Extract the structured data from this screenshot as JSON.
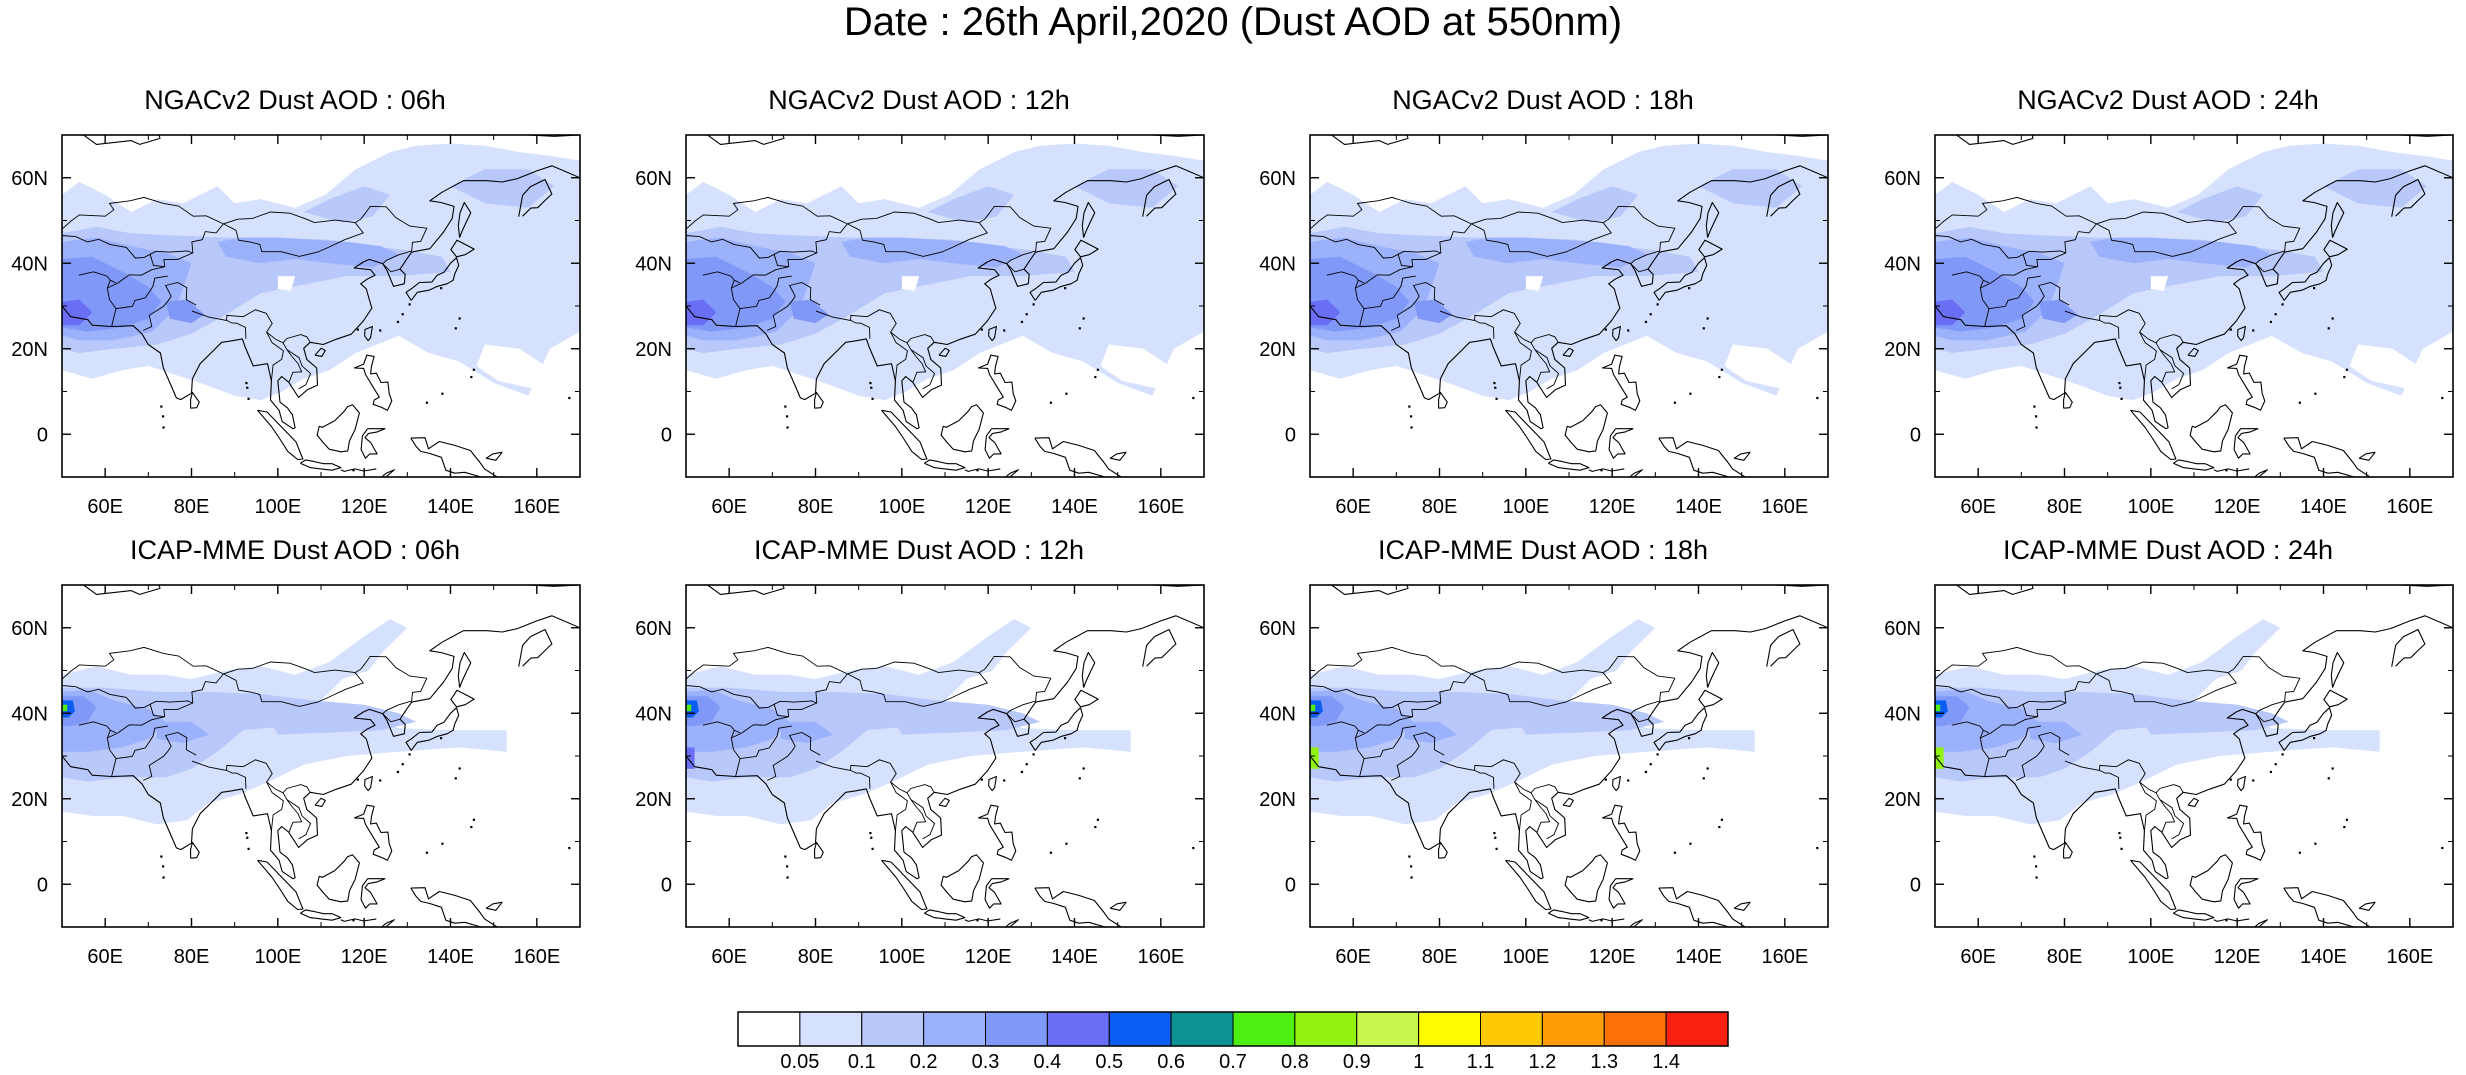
{
  "title": "Date : 26th April,2020 (Dust AOD at 550nm)",
  "axes": {
    "lat_ticks": [
      "60N",
      "40N",
      "20N",
      "0"
    ],
    "lat_values": [
      60,
      40,
      20,
      0
    ],
    "lon_ticks": [
      "60E",
      "80E",
      "100E",
      "120E",
      "140E",
      "160E"
    ],
    "lon_values": [
      60,
      80,
      100,
      120,
      140,
      160
    ],
    "lon_range": [
      50,
      170
    ],
    "lat_range": [
      -10,
      70
    ]
  },
  "panels": [
    {
      "title": "NGACv2 Dust AOD : 06h",
      "model": "NGACv2",
      "lead": "06h"
    },
    {
      "title": "NGACv2 Dust AOD : 12h",
      "model": "NGACv2",
      "lead": "12h"
    },
    {
      "title": "NGACv2 Dust AOD : 18h",
      "model": "NGACv2",
      "lead": "18h"
    },
    {
      "title": "NGACv2 Dust AOD : 24h",
      "model": "NGACv2",
      "lead": "24h"
    },
    {
      "title": "ICAP-MME Dust AOD : 06h",
      "model": "ICAP-MME",
      "lead": "06h"
    },
    {
      "title": "ICAP-MME Dust AOD : 12h",
      "model": "ICAP-MME",
      "lead": "12h"
    },
    {
      "title": "ICAP-MME Dust AOD : 18h",
      "model": "ICAP-MME",
      "lead": "18h"
    },
    {
      "title": "ICAP-MME Dust AOD : 24h",
      "model": "ICAP-MME",
      "lead": "24h"
    }
  ],
  "colorbar": {
    "labels": [
      "0.05",
      "0.1",
      "0.2",
      "0.3",
      "0.4",
      "0.5",
      "0.6",
      "0.7",
      "0.8",
      "0.9",
      "1",
      "1.1",
      "1.2",
      "1.3",
      "1.4"
    ],
    "colors": [
      "#ffffff",
      "#d5e1fd",
      "#b8c8fb",
      "#9bb1fb",
      "#8099f8",
      "#6a6ef5",
      "#0c5df4",
      "#0b9393",
      "#4ef011",
      "#91f30f",
      "#c9f64f",
      "#fefa01",
      "#fdc804",
      "#fd9d05",
      "#fd7006",
      "#fb2010"
    ]
  }
}
